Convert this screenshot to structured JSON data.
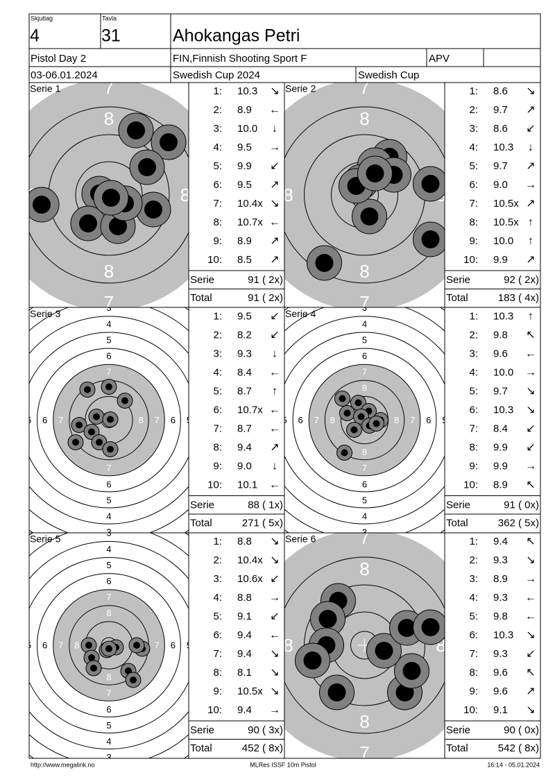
{
  "header": {
    "squad_label": "Skjutlag",
    "squad": "4",
    "target_label": "Tavla",
    "target": "31",
    "name": "Ahokangas Petri",
    "event": "Pistol Day 2",
    "club": "FIN,Finnish Shooting Sport F",
    "class": "APV",
    "date": "03-06.01.2024",
    "competition": "Swedish Cup 2024",
    "series_name": "Swedish Cup"
  },
  "labels": {
    "shot_numbers": [
      "1:",
      "2:",
      "3:",
      "4:",
      "5:",
      "6:",
      "7:",
      "8:",
      "9:",
      "10:"
    ],
    "serie": "Serie",
    "total": "Total"
  },
  "rings": {
    "zoom": [
      "7",
      "8"
    ],
    "full": [
      "3",
      "4",
      "5",
      "6",
      "7",
      "8"
    ]
  },
  "series": [
    {
      "title": "Serie 1",
      "view": "zoom",
      "scores": [
        "10.3",
        "8.9",
        "10.0",
        "9.5",
        "9.9",
        "9.5",
        "10.4x",
        "10.7x",
        "8.9",
        "8.5"
      ],
      "arrows": [
        "↘",
        "←",
        "↓",
        "→",
        "↙",
        "↗",
        "↘",
        "←",
        "↗",
        "↗"
      ],
      "serie": "91 ( 2x)",
      "total": "91 ( 2x)"
    },
    {
      "title": "Serie 2",
      "view": "zoom",
      "scores": [
        "8.6",
        "9.7",
        "8.6",
        "10.3",
        "9.7",
        "9.0",
        "10.5x",
        "10.5x",
        "10.0",
        "9.9"
      ],
      "arrows": [
        "↘",
        "↗",
        "↙",
        "↓",
        "↗",
        "→",
        "↗",
        "↑",
        "↑",
        "↗"
      ],
      "serie": "92 ( 2x)",
      "total": "183 ( 4x)"
    },
    {
      "title": "Serie 3",
      "view": "full",
      "scores": [
        "9.5",
        "8.2",
        "9.3",
        "8.4",
        "8.7",
        "10.7x",
        "8.7",
        "9.4",
        "9.0",
        "10.1"
      ],
      "arrows": [
        "↙",
        "↙",
        "↓",
        "←",
        "↑",
        "←",
        "←",
        "↗",
        "↓",
        "←"
      ],
      "serie": "88 ( 1x)",
      "total": "271 ( 5x)"
    },
    {
      "title": "Serie 4",
      "view": "full",
      "scores": [
        "10.3",
        "9.8",
        "9.6",
        "10.0",
        "9.7",
        "10.3",
        "8.4",
        "9.9",
        "9.9",
        "8.9"
      ],
      "arrows": [
        "↑",
        "↖",
        "←",
        "→",
        "↘",
        "↘",
        "↙",
        "↙",
        "→",
        "↖"
      ],
      "serie": "91 ( 0x)",
      "total": "362 ( 5x)"
    },
    {
      "title": "Serie 5",
      "view": "full",
      "scores": [
        "8.8",
        "10.4x",
        "10.6x",
        "8.8",
        "9.1",
        "9.4",
        "9.4",
        "8.1",
        "10.5x",
        "9.4"
      ],
      "arrows": [
        "↘",
        "↘",
        "↙",
        "→",
        "↙",
        "←",
        "↘",
        "↘",
        "↘",
        "→"
      ],
      "serie": "90 ( 3x)",
      "total": "452 ( 8x)"
    },
    {
      "title": "Serie 6",
      "view": "zoom",
      "scores": [
        "9.4",
        "9.3",
        "8.9",
        "9.3",
        "9.8",
        "10.3",
        "9.3",
        "9.6",
        "9.6",
        "9.1"
      ],
      "arrows": [
        "↖",
        "↘",
        "→",
        "←",
        "←",
        "↘",
        "↙",
        "↖",
        "↗",
        "↘"
      ],
      "serie": "90 ( 0x)",
      "total": "542 ( 8x)"
    }
  ],
  "footer": {
    "left": "http://www.megalink.no",
    "center": "MLRes ISSF 10m Pistol",
    "right": "16:14 - 05.01.2024"
  }
}
